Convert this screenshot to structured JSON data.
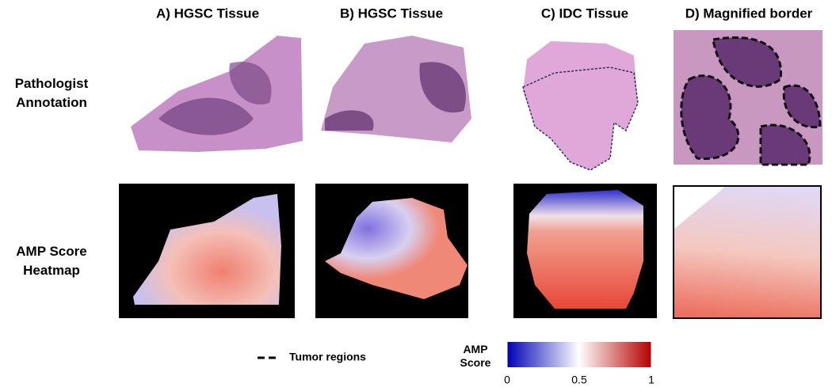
{
  "columns": [
    "A) HGSC Tissue",
    "B) HGSC Tissue",
    "C) IDC Tissue",
    "D) Magnified border"
  ],
  "rows": [
    "Pathologist Annotation",
    "AMP Score Heatmap"
  ],
  "legend": {
    "label": "Tumor regions"
  },
  "colorbar": {
    "title": "AMP Score",
    "lim": [
      0,
      1
    ],
    "ticks": [
      0,
      0.5,
      1
    ],
    "colors": [
      "#0000b4",
      "#ffffff",
      "#b40000"
    ]
  }
}
